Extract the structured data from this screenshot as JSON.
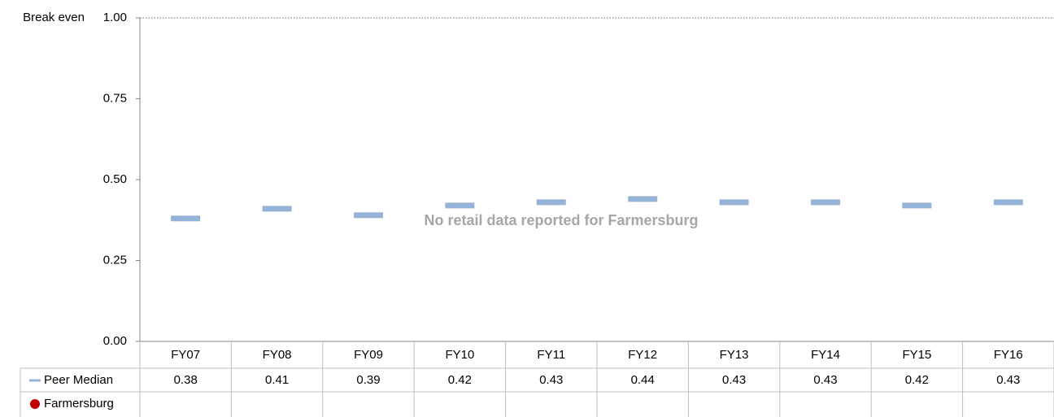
{
  "chart_data": {
    "type": "dash",
    "categories": [
      "FY07",
      "FY08",
      "FY09",
      "FY10",
      "FY11",
      "FY12",
      "FY13",
      "FY14",
      "FY15",
      "FY16"
    ],
    "series": [
      {
        "name": "Peer Median",
        "color": "#95b3d7",
        "values": [
          0.38,
          0.41,
          0.39,
          0.42,
          0.43,
          0.44,
          0.43,
          0.43,
          0.42,
          0.43
        ]
      },
      {
        "name": "Farmersburg",
        "color": "#c00000",
        "values": [
          null,
          null,
          null,
          null,
          null,
          null,
          null,
          null,
          null,
          null
        ]
      }
    ],
    "ylim": [
      0,
      1
    ],
    "yticks": [
      {
        "value": 0,
        "label": "0.00"
      },
      {
        "value": 0.25,
        "label": "0.25"
      },
      {
        "value": 0.5,
        "label": "0.50"
      },
      {
        "value": 0.75,
        "label": "0.75"
      },
      {
        "value": 1,
        "label": "1.00"
      }
    ],
    "reference_line": {
      "label": "Break even",
      "value": 1
    },
    "annotation": "No retail data reported for Farmersburg"
  }
}
